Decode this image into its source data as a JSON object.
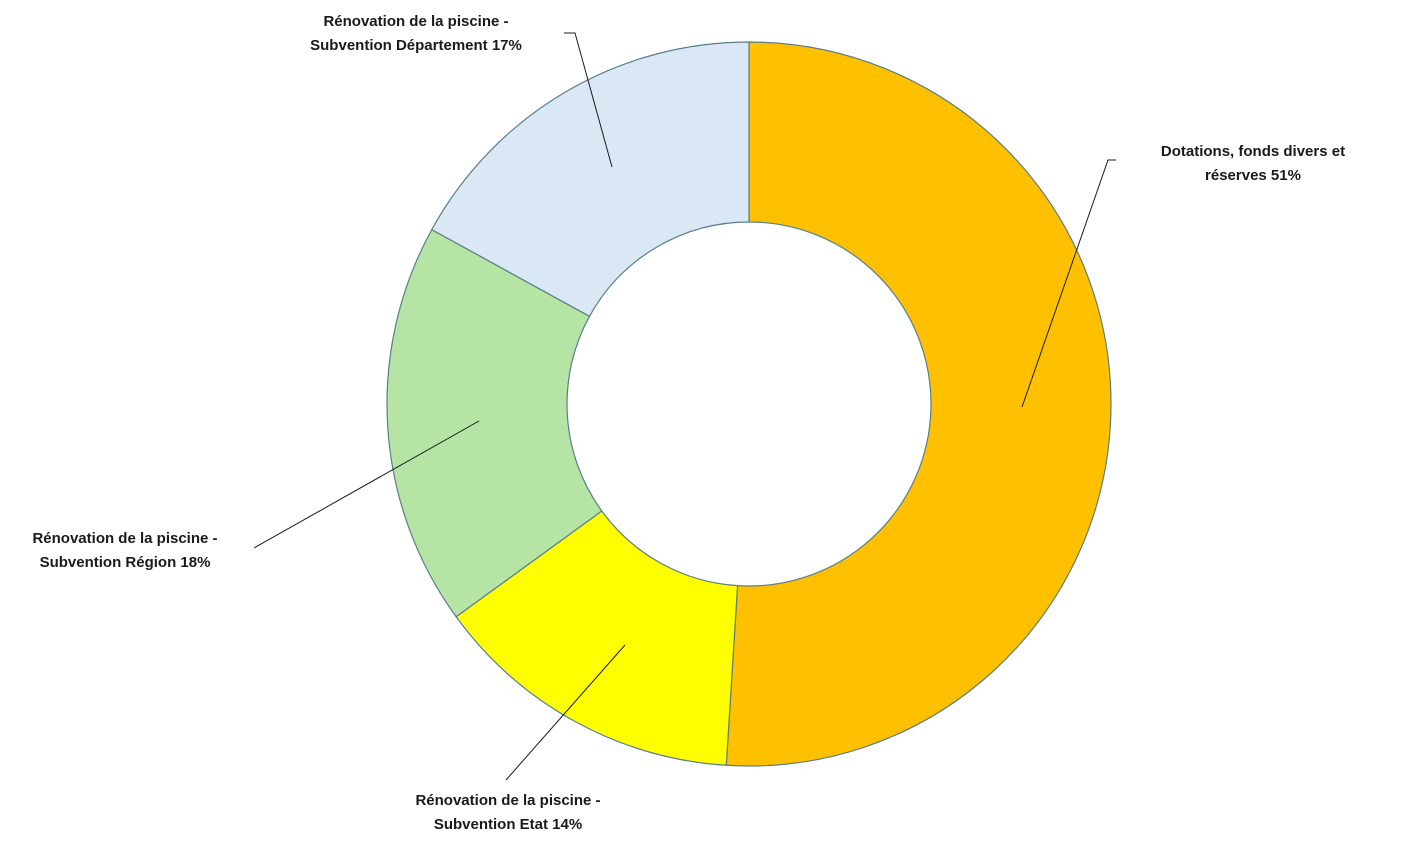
{
  "chart_data": {
    "type": "pie",
    "donut": true,
    "legend": "none",
    "slices": [
      {
        "label_lines": [
          "Dotations, fonds divers et",
          "réserves 51%"
        ],
        "value": 51,
        "color": "#FFC000"
      },
      {
        "label_lines": [
          "Rénovation de la piscine -",
          "Subvention Etat 14%"
        ],
        "value": 14,
        "color": "#FFFF00"
      },
      {
        "label_lines": [
          "Rénovation de la piscine -",
          "Subvention Région 18%"
        ],
        "value": 18,
        "color": "#B5E4A4"
      },
      {
        "label_lines": [
          "Rénovation de la piscine -",
          "Subvention Département 17%"
        ],
        "value": 17,
        "color": "#DAE7F5"
      }
    ],
    "slice_border_color": "#5A7F88"
  }
}
